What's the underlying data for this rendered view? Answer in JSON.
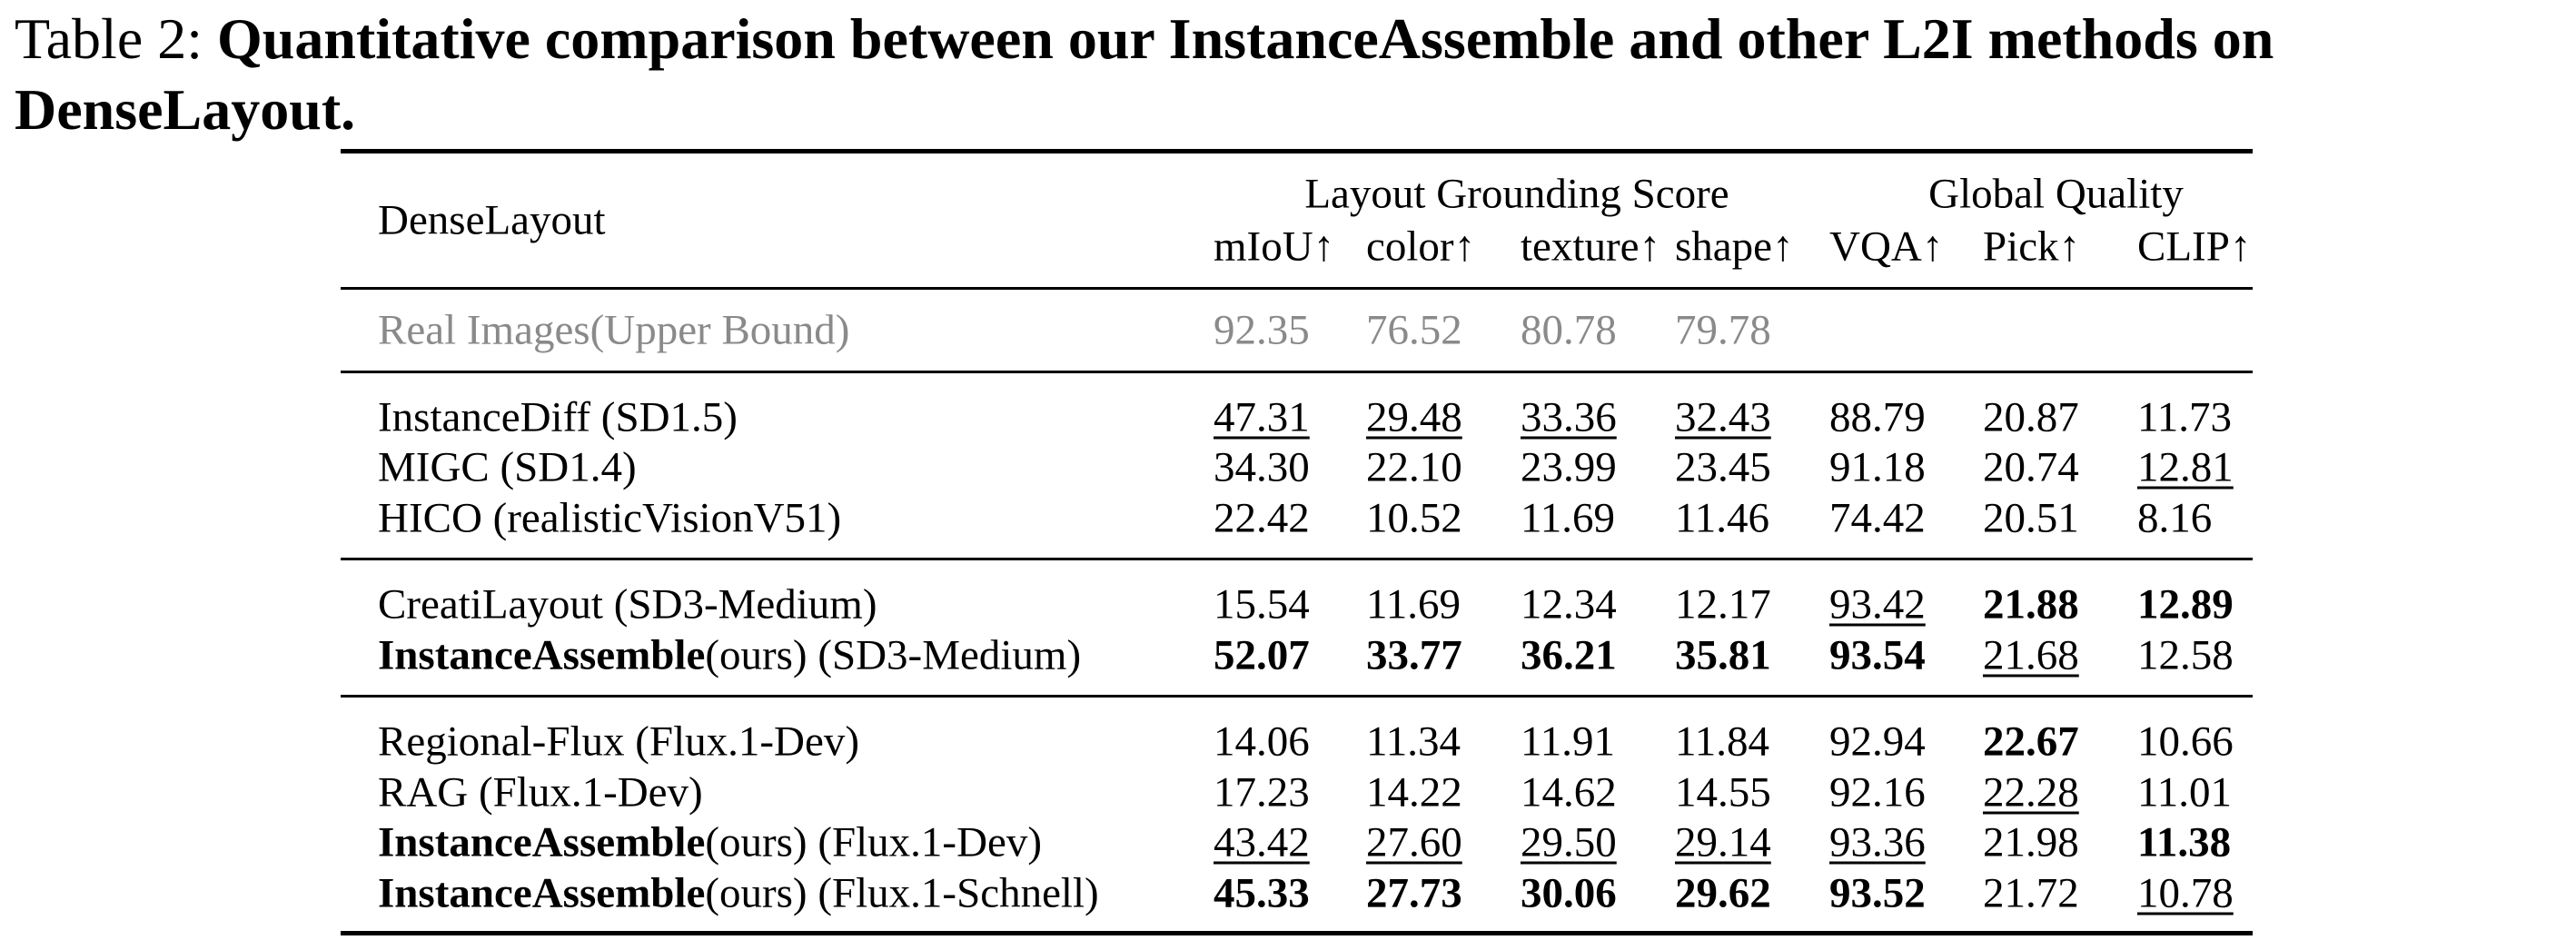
{
  "caption": {
    "label": "Table 2:",
    "text": "Quantitative comparison between our InstanceAssemble and other L2I methods on DenseLayout."
  },
  "table": {
    "corner": "DenseLayout",
    "groups": [
      {
        "label": "Layout Grounding Score",
        "span": [
          0,
          3
        ]
      },
      {
        "label": "Global Quality",
        "span": [
          4,
          6
        ]
      }
    ],
    "columns": [
      "mIoU↑",
      "color↑",
      "texture↑",
      "shape↑",
      "VQA↑",
      "Pick↑",
      "CLIP↑"
    ],
    "sections": [
      [
        {
          "method": "Real Images(Upper Bound)",
          "muted": true,
          "values": [
            "92.35",
            "76.52",
            "80.78",
            "79.78"
          ],
          "bold": [],
          "underline": []
        }
      ],
      [
        {
          "method": "InstanceDiff (SD1.5)",
          "values": [
            "47.31",
            "29.48",
            "33.36",
            "32.43",
            "88.79",
            "20.87",
            "11.73"
          ],
          "bold": [],
          "underline": [
            0,
            1,
            2,
            3
          ]
        },
        {
          "method": "MIGC (SD1.4)",
          "values": [
            "34.30",
            "22.10",
            "23.99",
            "23.45",
            "91.18",
            "20.74",
            "12.81"
          ],
          "bold": [],
          "underline": [
            6
          ]
        },
        {
          "method": "HICO (realisticVisionV51)",
          "values": [
            "22.42",
            "10.52",
            "11.69",
            "11.46",
            "74.42",
            "20.51",
            "8.16"
          ],
          "bold": [],
          "underline": []
        }
      ],
      [
        {
          "method": "CreatiLayout (SD3-Medium)",
          "values": [
            "15.54",
            "11.69",
            "12.34",
            "12.17",
            "93.42",
            "21.88",
            "12.89"
          ],
          "bold": [
            5,
            6
          ],
          "underline": [
            4
          ]
        },
        {
          "method_bold": "InstanceAssemble",
          "method": "(ours) (SD3-Medium)",
          "values": [
            "52.07",
            "33.77",
            "36.21",
            "35.81",
            "93.54",
            "21.68",
            "12.58"
          ],
          "bold": [
            0,
            1,
            2,
            3,
            4
          ],
          "underline": [
            5
          ]
        }
      ],
      [
        {
          "method": "Regional-Flux (Flux.1-Dev)",
          "values": [
            "14.06",
            "11.34",
            "11.91",
            "11.84",
            "92.94",
            "22.67",
            "10.66"
          ],
          "bold": [
            5
          ],
          "underline": []
        },
        {
          "method": "RAG (Flux.1-Dev)",
          "values": [
            "17.23",
            "14.22",
            "14.62",
            "14.55",
            "92.16",
            "22.28",
            "11.01"
          ],
          "bold": [],
          "underline": [
            5
          ]
        },
        {
          "method_bold": "InstanceAssemble",
          "method": "(ours) (Flux.1-Dev)",
          "values": [
            "43.42",
            "27.60",
            "29.50",
            "29.14",
            "93.36",
            "21.98",
            "11.38"
          ],
          "bold": [
            6
          ],
          "underline": [
            0,
            1,
            2,
            3,
            4
          ]
        },
        {
          "method_bold": "InstanceAssemble",
          "method": "(ours) (Flux.1-Schnell)",
          "values": [
            "45.33",
            "27.73",
            "30.06",
            "29.62",
            "93.52",
            "21.72",
            "10.78"
          ],
          "bold": [
            0,
            1,
            2,
            3,
            4
          ],
          "underline": [
            6
          ]
        }
      ]
    ]
  }
}
